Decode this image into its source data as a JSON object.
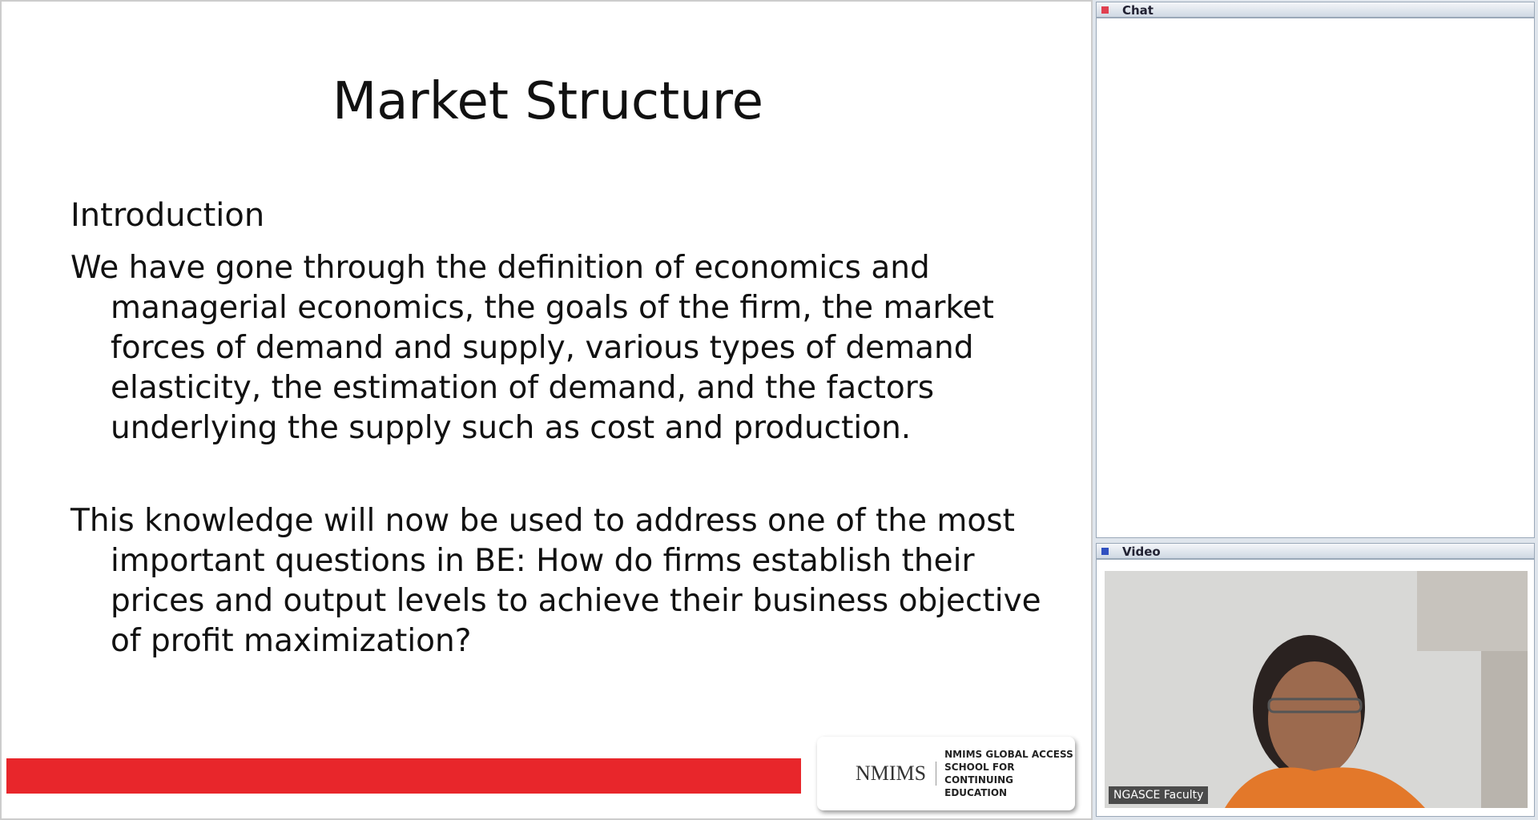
{
  "slide": {
    "title": "Market Structure",
    "heading": "Introduction",
    "paragraphs": [
      "We have gone through the definition of economics and managerial economics, the goals of the firm, the market forces of demand and supply, various types of demand elasticity, the estimation of demand, and the factors underlying the supply such as cost and production.",
      "This knowledge will now be used to address one of the most important questions in BE: How do firms establish their prices and output levels to achieve their business objective of profit maximization?"
    ],
    "logo": {
      "brand": "NMIMS",
      "school": [
        "NMIMS GLOBAL ACCESS",
        "SCHOOL FOR",
        "CONTINUING EDUCATION"
      ]
    }
  },
  "chat": {
    "title": "Chat"
  },
  "video": {
    "title": "Video",
    "label": "NGASCE Faculty"
  }
}
